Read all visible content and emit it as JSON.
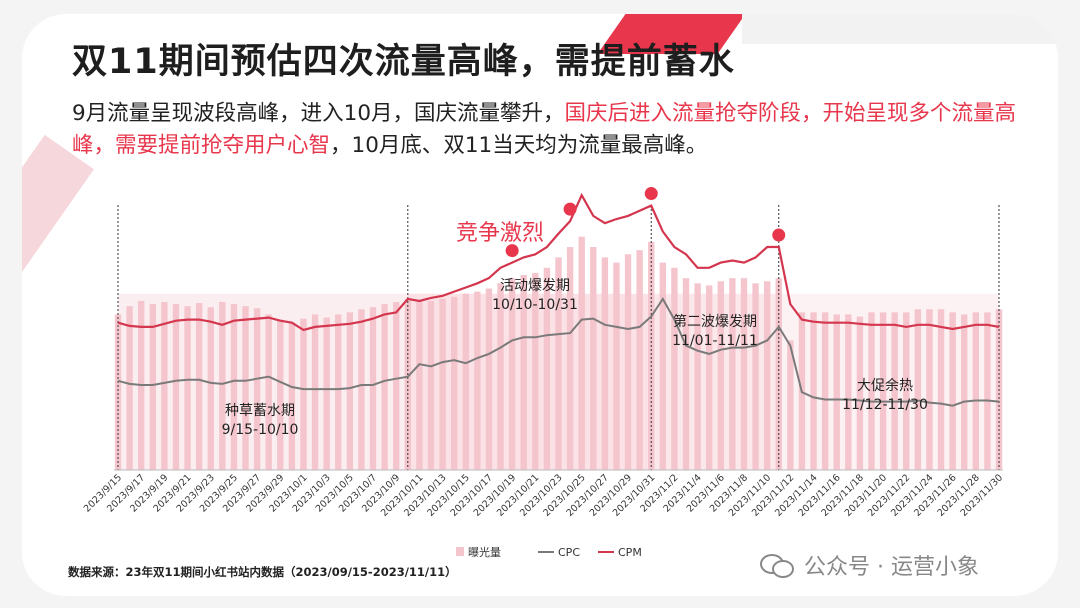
{
  "title": "双11期间预估四次流量高峰，需提前蓄水",
  "subtitle": {
    "part1": "9月流量呈现波段高峰，进入10月，国庆流量攀升，",
    "highlight": "国庆后进入流量抢夺阶段，开始呈现多个流量高峰，需要提前抢夺用户心智",
    "part2": "，10月底、双11当天均为流量最高峰。"
  },
  "source": "数据来源：23年双11期间小红书站内数据（2023/09/15-2023/11/11）",
  "watermark": "公众号 · 运营小象",
  "colors": {
    "accent": "#e8374c",
    "bar": "#f4c5cc",
    "cpc": "#7a7a7a",
    "cpm": "#d4364e"
  },
  "chart_data": {
    "type": "bar",
    "x": [
      "2023/9/15",
      "2023/9/16",
      "2023/9/17",
      "2023/9/18",
      "2023/9/19",
      "2023/9/20",
      "2023/9/21",
      "2023/9/22",
      "2023/9/23",
      "2023/9/24",
      "2023/9/25",
      "2023/9/26",
      "2023/9/27",
      "2023/9/28",
      "2023/9/29",
      "2023/9/30",
      "2023/10/1",
      "2023/10/2",
      "2023/10/3",
      "2023/10/4",
      "2023/10/5",
      "2023/10/6",
      "2023/10/7",
      "2023/10/8",
      "2023/10/9",
      "2023/10/10",
      "2023/10/11",
      "2023/10/12",
      "2023/10/13",
      "2023/10/14",
      "2023/10/15",
      "2023/10/16",
      "2023/10/17",
      "2023/10/18",
      "2023/10/19",
      "2023/10/20",
      "2023/10/21",
      "2023/10/22",
      "2023/10/23",
      "2023/10/24",
      "2023/10/25",
      "2023/10/26",
      "2023/10/27",
      "2023/10/28",
      "2023/10/29",
      "2023/10/30",
      "2023/10/31",
      "2023/11/1",
      "2023/11/2",
      "2023/11/3",
      "2023/11/4",
      "2023/11/5",
      "2023/11/6",
      "2023/11/7",
      "2023/11/8",
      "2023/11/9",
      "2023/11/10",
      "2023/11/11",
      "2023/11/12",
      "2023/11/13",
      "2023/11/14",
      "2023/11/15",
      "2023/11/16",
      "2023/11/17",
      "2023/11/18",
      "2023/11/19",
      "2023/11/20",
      "2023/11/21",
      "2023/11/22",
      "2023/11/23",
      "2023/11/24",
      "2023/11/25",
      "2023/11/26",
      "2023/11/27",
      "2023/11/28",
      "2023/11/29",
      "2023/11/30"
    ],
    "tick_labels": [
      "2023/9/15",
      "2023/9/17",
      "2023/9/19",
      "2023/9/21",
      "2023/9/23",
      "2023/9/25",
      "2023/9/27",
      "2023/9/29",
      "2023/10/1",
      "2023/10/3",
      "2023/10/5",
      "2023/10/7",
      "2023/10/9",
      "2023/10/11",
      "2023/10/13",
      "2023/10/15",
      "2023/10/17",
      "2023/10/19",
      "2023/10/21",
      "2023/10/23",
      "2023/10/25",
      "2023/10/27",
      "2023/10/29",
      "2023/10/31",
      "2023/11/2",
      "2023/11/4",
      "2023/11/6",
      "2023/11/8",
      "2023/11/10",
      "2023/11/12",
      "2023/11/14",
      "2023/11/16",
      "2023/11/18",
      "2023/11/20",
      "2023/11/22",
      "2023/11/24",
      "2023/11/26",
      "2023/11/28",
      "2023/11/30"
    ],
    "series": [
      {
        "name": "曝光量",
        "kind": "bar",
        "values": [
          150,
          158,
          163,
          160,
          162,
          160,
          158,
          161,
          157,
          162,
          160,
          158,
          156,
          150,
          145,
          142,
          146,
          150,
          147,
          150,
          152,
          155,
          157,
          160,
          162,
          165,
          164,
          163,
          165,
          167,
          170,
          172,
          175,
          180,
          185,
          188,
          190,
          195,
          205,
          215,
          225,
          215,
          205,
          200,
          208,
          212,
          220,
          200,
          195,
          185,
          180,
          178,
          182,
          185,
          185,
          180,
          182,
          185,
          125,
          152,
          152,
          152,
          150,
          150,
          148,
          152,
          152,
          152,
          152,
          155,
          155,
          155,
          152,
          150,
          152,
          152,
          155
        ]
      },
      {
        "name": "CPC",
        "kind": "line",
        "values": [
          86,
          83,
          82,
          82,
          84,
          86,
          87,
          87,
          84,
          83,
          86,
          86,
          88,
          90,
          85,
          80,
          78,
          78,
          78,
          78,
          79,
          82,
          82,
          86,
          88,
          90,
          102,
          100,
          104,
          106,
          103,
          108,
          112,
          118,
          125,
          128,
          128,
          130,
          131,
          132,
          145,
          146,
          140,
          138,
          136,
          138,
          148,
          165,
          145,
          120,
          115,
          112,
          116,
          118,
          118,
          120,
          125,
          138,
          120,
          75,
          70,
          68,
          68,
          68,
          67,
          66,
          66,
          66,
          66,
          67,
          65,
          64,
          62,
          66,
          67,
          67,
          66
        ]
      },
      {
        "name": "CPM",
        "kind": "line",
        "values": [
          142,
          139,
          138,
          138,
          141,
          144,
          145,
          145,
          143,
          140,
          144,
          145,
          146,
          147,
          144,
          142,
          135,
          138,
          139,
          140,
          141,
          143,
          146,
          150,
          152,
          165,
          163,
          166,
          168,
          172,
          176,
          180,
          185,
          195,
          200,
          205,
          208,
          215,
          228,
          240,
          265,
          245,
          238,
          242,
          245,
          250,
          255,
          230,
          215,
          208,
          195,
          195,
          200,
          202,
          200,
          205,
          215,
          215,
          160,
          145,
          143,
          142,
          142,
          142,
          141,
          140,
          140,
          140,
          138,
          140,
          140,
          138,
          136,
          138,
          140,
          140,
          138
        ]
      }
    ],
    "ylim": [
      0,
      270
    ],
    "phases": [
      {
        "name": "种草蓄水期",
        "range": "9/15-10/10"
      },
      {
        "name": "活动爆发期",
        "range": "10/10-10/31"
      },
      {
        "name": "第二波爆发期",
        "range": "11/01-11/11"
      },
      {
        "name": "大促余热",
        "range": "11/12-11/30"
      }
    ],
    "annotation": "竞争激烈",
    "peak_markers": [
      "2023/10/19",
      "2023/10/24",
      "2023/10/31",
      "2023/11/11"
    ],
    "phase_dividers": [
      "2023/9/15",
      "2023/10/10",
      "2023/10/31",
      "2023/11/11",
      "2023/11/30"
    ],
    "legend": [
      "曝光量",
      "CPC",
      "CPM"
    ],
    "legend_position": "bottom-left",
    "grid": false
  }
}
